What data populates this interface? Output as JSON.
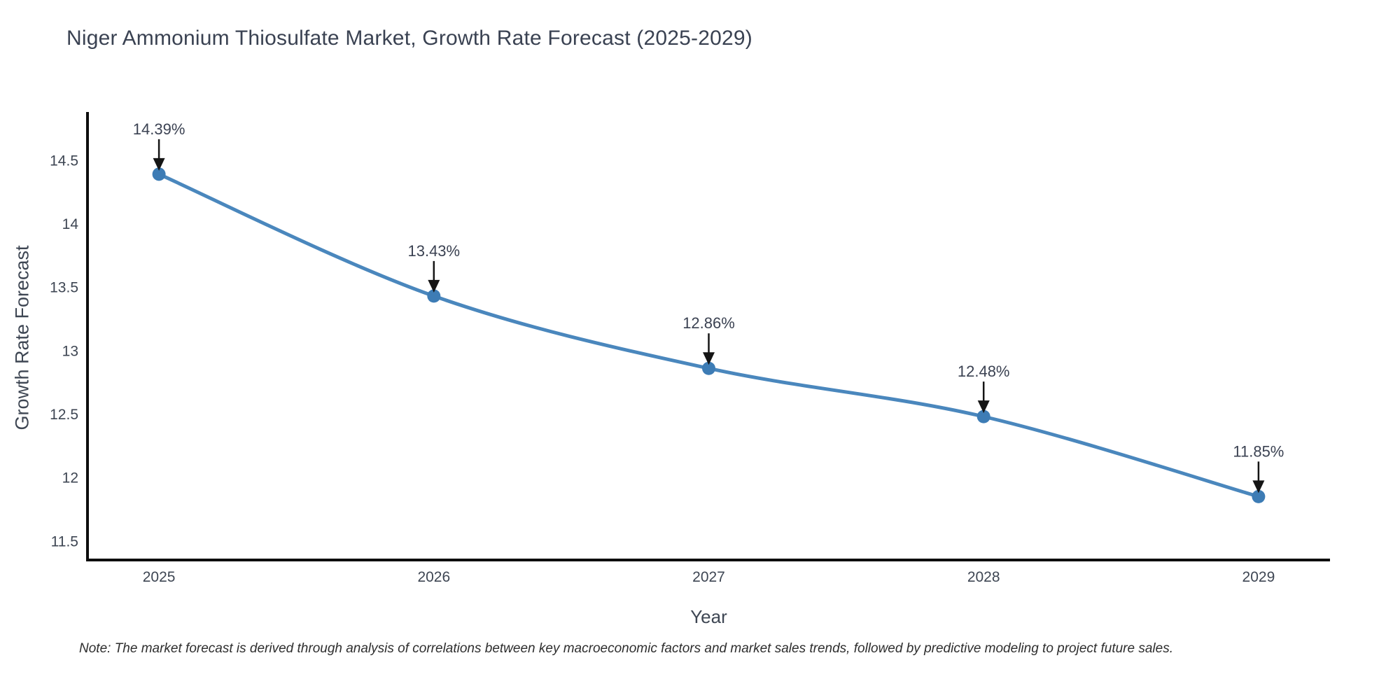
{
  "chart_data": {
    "type": "line",
    "title": "Niger Ammonium Thiosulfate Market, Growth Rate Forecast (2025-2029)",
    "xlabel": "Year",
    "ylabel": "Growth Rate Forecast",
    "categories": [
      2025,
      2026,
      2027,
      2028,
      2029
    ],
    "series": [
      {
        "name": "Growth Rate Forecast",
        "values": [
          14.39,
          13.43,
          12.86,
          12.48,
          11.85
        ],
        "point_labels": [
          "14.39%",
          "13.43%",
          "12.86%",
          "12.48%",
          "11.85%"
        ]
      }
    ],
    "yticks": [
      11.5,
      12,
      12.5,
      13,
      13.5,
      14,
      14.5
    ],
    "ylim": [
      11.35,
      14.88
    ],
    "xlim": [
      2024.74,
      2029.26
    ],
    "grid": false,
    "legend": "none",
    "line_shape": "spline",
    "annotation_style": "value labels with downward arrows above each point",
    "note": "Note: The market forecast is derived through analysis of correlations between key macroeconomic factors and market sales trends, followed by predictive modeling to project future sales.",
    "colors": {
      "line": "#4a87bd",
      "marker": "#3d7cb5",
      "axis": "#0d0d0d",
      "tick_text": "#3e4653",
      "annotation_text": "#3b4252",
      "annotation_arrow": "#151515",
      "title_text": "#3a4252",
      "background": "#ffffff"
    }
  }
}
